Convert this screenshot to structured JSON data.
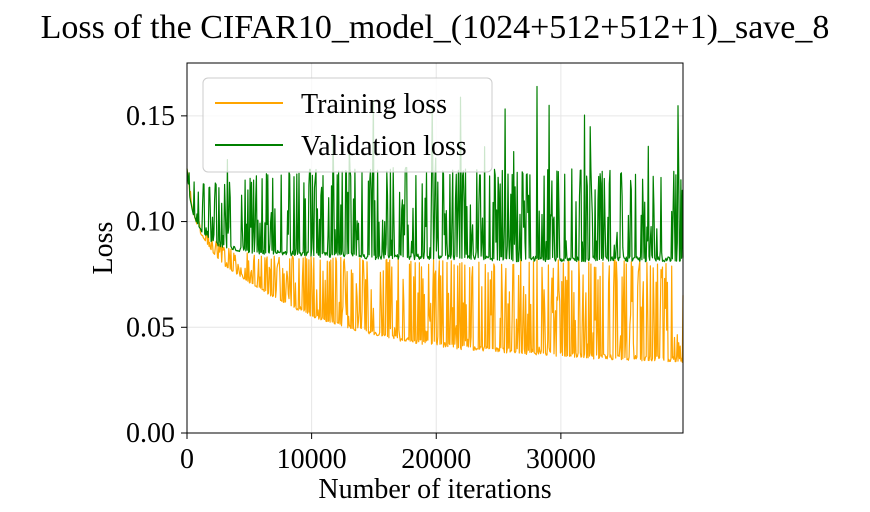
{
  "chart_data": {
    "type": "line",
    "title": "Loss of the CIFAR10_model_(1024+512+512+1)_save_8",
    "xlabel": "Number of iterations",
    "ylabel": "Loss",
    "xlim": [
      0,
      39800
    ],
    "ylim": [
      0.0,
      0.175
    ],
    "xticks": [
      0,
      10000,
      20000,
      30000
    ],
    "xtick_labels": [
      "0",
      "10000",
      "20000",
      "30000"
    ],
    "yticks": [
      0.0,
      0.05,
      0.1,
      0.15
    ],
    "ytick_labels": [
      "0.00",
      "0.05",
      "0.10",
      "0.15"
    ],
    "grid": true,
    "legend_position": "upper-left",
    "series": [
      {
        "name": "Training loss",
        "color": "#FFA500",
        "x": [
          0,
          200,
          500,
          1000,
          2000,
          3000,
          5000,
          7500,
          10000,
          12500,
          15000,
          17500,
          20000,
          22500,
          25000,
          27500,
          30000,
          32500,
          35000,
          37500,
          39800
        ],
        "floor": [
          0.125,
          0.113,
          0.104,
          0.095,
          0.086,
          0.079,
          0.071,
          0.062,
          0.055,
          0.05,
          0.046,
          0.043,
          0.041,
          0.039,
          0.038,
          0.037,
          0.036,
          0.035,
          0.034,
          0.034,
          0.033
        ],
        "peak": [
          0.125,
          0.118,
          0.108,
          0.1,
          0.092,
          0.088,
          0.085,
          0.084,
          0.084,
          0.083,
          0.083,
          0.083,
          0.083,
          0.082,
          0.082,
          0.082,
          0.082,
          0.082,
          0.082,
          0.081,
          0.081
        ]
      },
      {
        "name": "Validation loss",
        "color": "#008000",
        "x": [
          0,
          200,
          500,
          1000,
          2000,
          3000,
          5000,
          7500,
          10000,
          12500,
          15000,
          17500,
          20000,
          22500,
          25000,
          27500,
          30000,
          32500,
          35000,
          37500,
          39800
        ],
        "floor": [
          0.125,
          0.112,
          0.103,
          0.096,
          0.09,
          0.087,
          0.085,
          0.084,
          0.083,
          0.083,
          0.082,
          0.082,
          0.082,
          0.082,
          0.081,
          0.081,
          0.081,
          0.081,
          0.081,
          0.081,
          0.081
        ],
        "peak": [
          0.125,
          0.123,
          0.12,
          0.118,
          0.118,
          0.12,
          0.122,
          0.124,
          0.125,
          0.125,
          0.126,
          0.126,
          0.125,
          0.125,
          0.125,
          0.125,
          0.125,
          0.125,
          0.124,
          0.124,
          0.124
        ],
        "max": 0.164
      }
    ]
  }
}
